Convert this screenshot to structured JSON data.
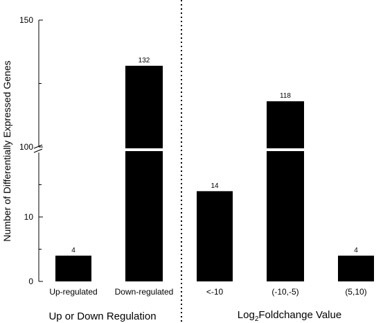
{
  "chart_data": {
    "type": "bar",
    "ylabel": "Number of Differentially Expressed Genes",
    "y_axis_break": true,
    "y_lower_range": [
      0,
      20
    ],
    "y_upper_range": [
      100,
      150
    ],
    "y_ticks": [
      "0",
      "10",
      "100",
      "150"
    ],
    "categories": [
      "Up-regulated",
      "Down-regulated",
      "<-10",
      "(-10,-5)",
      "(5,10)"
    ],
    "values": [
      4,
      132,
      14,
      118,
      4
    ],
    "data_labels": [
      "4",
      "132",
      "14",
      "118",
      "4"
    ],
    "groups": [
      {
        "title": "Up or Down Regulation",
        "categories": [
          "Up-regulated",
          "Down-regulated"
        ]
      },
      {
        "title_main": "Log",
        "title_sub": "2",
        "title_rest": "Foldchange Value",
        "categories": [
          "<-10",
          "(-10,-5)",
          "(5,10)"
        ]
      }
    ],
    "bar_color": "#000000",
    "group_separator": "dotted"
  }
}
